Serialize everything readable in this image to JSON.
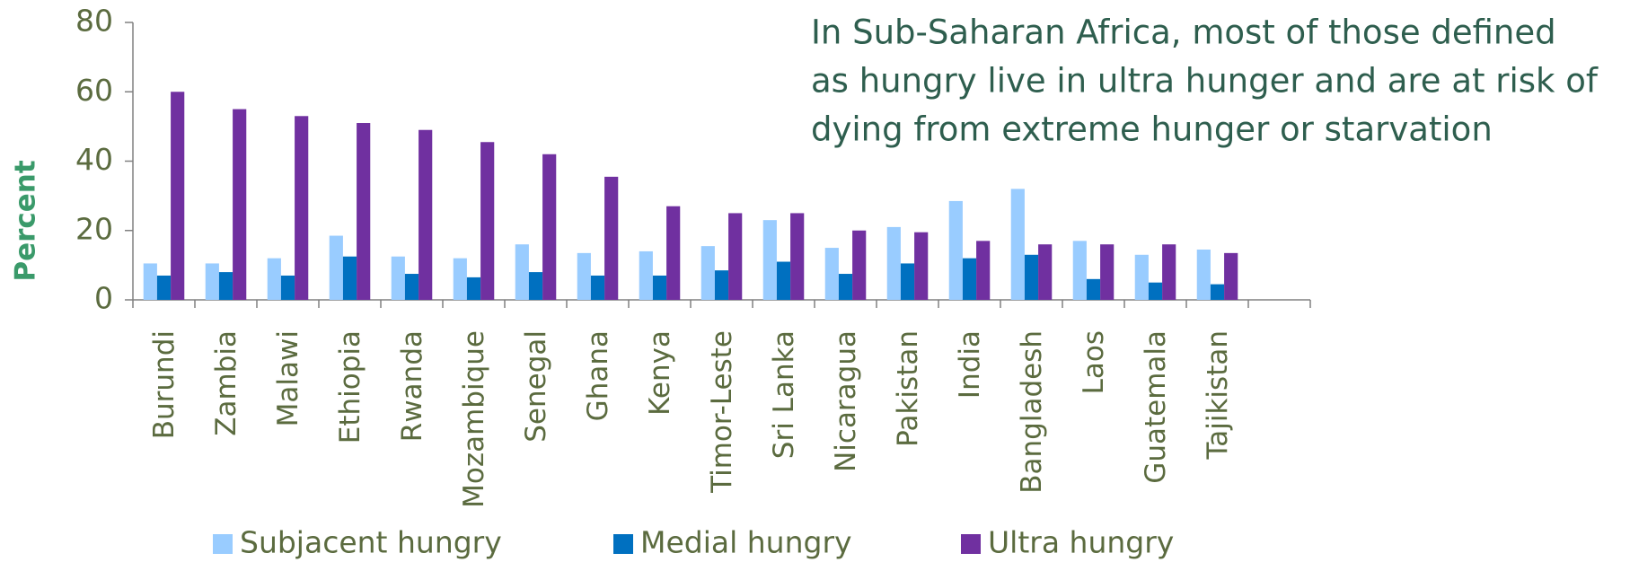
{
  "chart_data": {
    "type": "bar",
    "annotation": [
      "In Sub-Saharan Africa, most of those defined",
      "as hungry live in ultra hunger and are at risk of",
      "dying from extreme hunger or starvation"
    ],
    "y_label": "Percent",
    "categories": [
      "Burundi",
      "Zambia",
      "Malawi",
      "Ethiopia",
      "Rwanda",
      "Mozambique",
      "Senegal",
      "Ghana",
      "Kenya",
      "Timor-Leste",
      "Sri Lanka",
      "Nicaragua",
      "Pakistan",
      "India",
      "Bangladesh",
      "Laos",
      "Guatemala",
      "Tajikistan",
      null
    ],
    "series": [
      {
        "name": "Subjacent hungry",
        "color": "#99ccff",
        "values": [
          10.5,
          10.5,
          12,
          18.5,
          12.5,
          12,
          16,
          13.5,
          14,
          15.5,
          23,
          15,
          21,
          28.5,
          32,
          17,
          13,
          14.5,
          null
        ]
      },
      {
        "name": "Medial hungry",
        "color": "#0070c0",
        "values": [
          7,
          8,
          7,
          12.5,
          7.5,
          6.5,
          8,
          7,
          7,
          8.5,
          11,
          7.5,
          10.5,
          12,
          13,
          6,
          5,
          4.5,
          null
        ]
      },
      {
        "name": "Ultra hungry",
        "color": "#7030a0",
        "values": [
          60,
          55,
          53,
          51,
          49,
          45.5,
          42,
          35.5,
          27,
          25,
          25,
          20,
          19.5,
          17,
          16,
          16,
          16,
          13.5,
          null
        ]
      }
    ],
    "ylim": [
      0,
      80
    ],
    "yticks": [
      0,
      20,
      40,
      60,
      80
    ],
    "grid": false,
    "legend": "bottom"
  }
}
